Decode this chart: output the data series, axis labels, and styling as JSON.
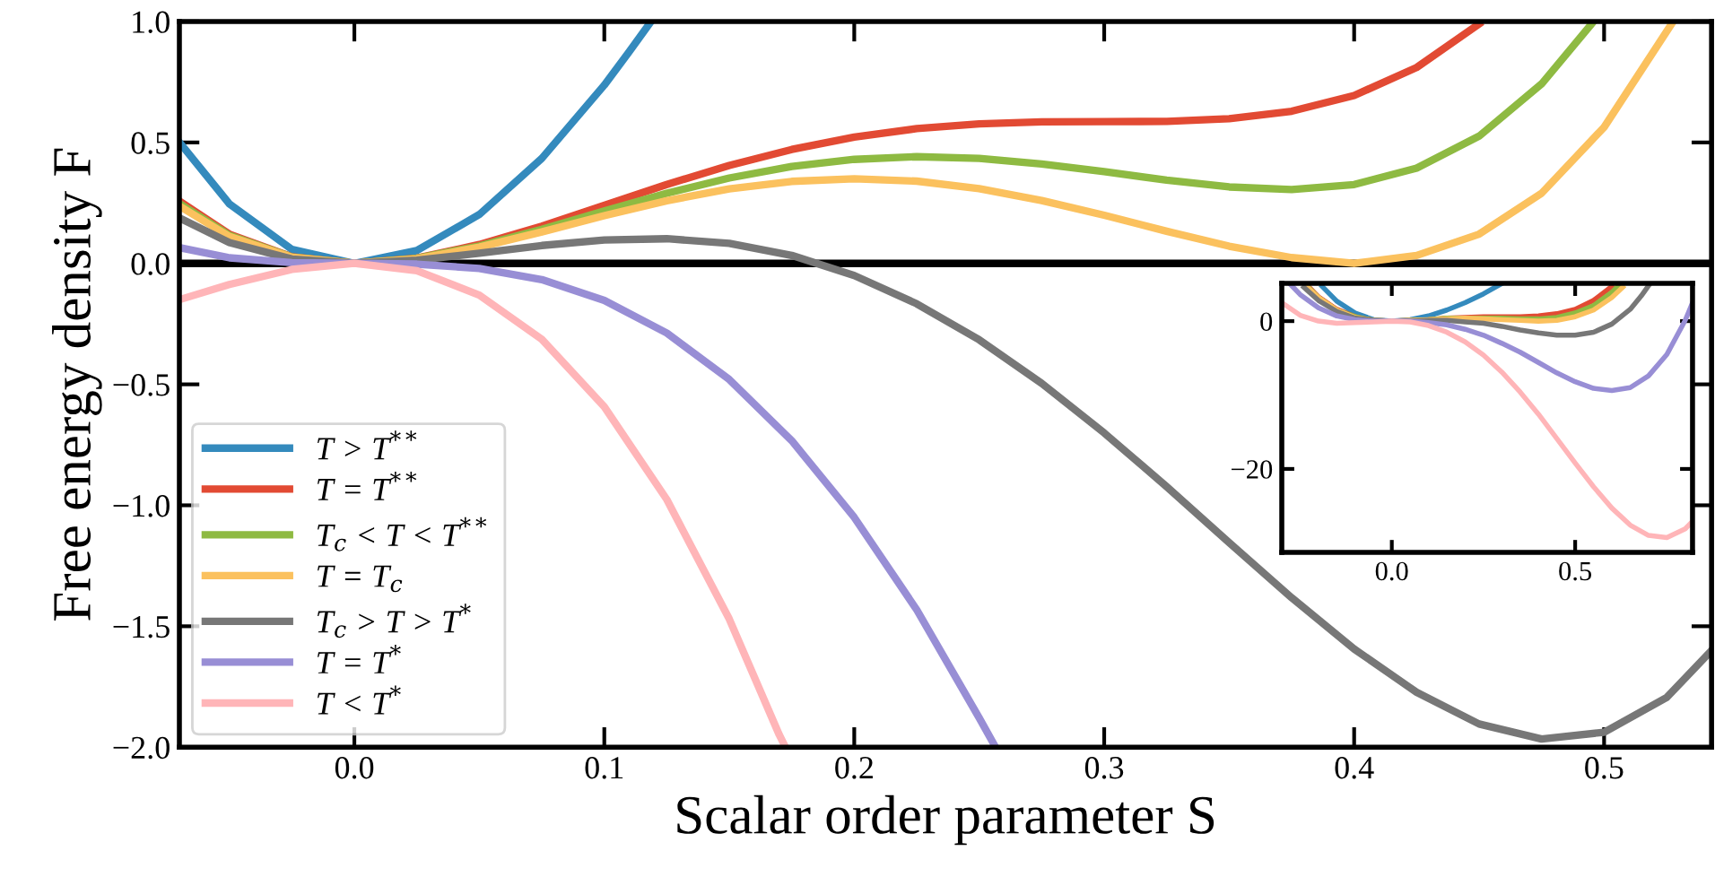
{
  "chart_data": [
    {
      "type": "line",
      "xlabel": "Scalar order parameter S",
      "ylabel": "Free energy density F",
      "xlim": [
        -0.07,
        0.543
      ],
      "ylim": [
        -2.0,
        1.0
      ],
      "xticks": [
        {
          "value": 0,
          "label": "0.0"
        },
        0.1,
        0.2,
        0.3,
        0.4,
        0.5
      ],
      "yticks": [
        {
          "value": -2,
          "label": "−2.0"
        },
        {
          "value": -1.5,
          "label": "−1.5"
        },
        {
          "value": -1,
          "label": "−1.0"
        },
        {
          "value": -0.5,
          "label": "−0.5"
        },
        {
          "value": 0,
          "label": "0.0"
        },
        0.5,
        {
          "value": 1,
          "label": "1.0"
        }
      ],
      "grid": false,
      "legend": "bottom left",
      "marker": "none",
      "line_style": "solid",
      "ref_lines": [
        {
          "axis": "y",
          "value": 0,
          "color": "#000000"
        }
      ],
      "series": [
        {
          "name": "T > T$^{**}$",
          "color": "#348abd",
          "x": [
            -0.07,
            -0.05,
            -0.025,
            0,
            0.025,
            0.05,
            0.075,
            0.1,
            0.11,
            0.118
          ],
          "values": [
            0.501,
            0.246,
            0.058,
            0,
            0.053,
            0.202,
            0.434,
            0.737,
            0.876,
            0.99
          ]
        },
        {
          "name": "T = T$^{**}$",
          "color": "#e24a33",
          "x": [
            -0.07,
            -0.05,
            -0.025,
            0,
            0.025,
            0.05,
            0.075,
            0.1,
            0.125,
            0.15,
            0.175,
            0.2,
            0.225,
            0.25,
            0.275,
            0.3,
            0.325,
            0.35,
            0.375,
            0.4,
            0.425,
            0.45
          ],
          "values": [
            0.258,
            0.121,
            0.027,
            0,
            0.022,
            0.078,
            0.154,
            0.24,
            0.326,
            0.405,
            0.471,
            0.522,
            0.557,
            0.577,
            0.585,
            0.586,
            0.587,
            0.598,
            0.629,
            0.694,
            0.81,
            0.99
          ]
        },
        {
          "name": "T$_{c}$ < T < T$^{**}$",
          "color": "#8eba42",
          "x": [
            -0.07,
            -0.05,
            -0.025,
            0,
            0.025,
            0.05,
            0.075,
            0.1,
            0.125,
            0.15,
            0.175,
            0.2,
            0.225,
            0.25,
            0.275,
            0.3,
            0.325,
            0.35,
            0.375,
            0.4,
            0.425,
            0.45,
            0.475,
            0.495
          ],
          "values": [
            0.247,
            0.116,
            0.026,
            0,
            0.021,
            0.072,
            0.141,
            0.217,
            0.29,
            0.353,
            0.401,
            0.43,
            0.441,
            0.434,
            0.411,
            0.379,
            0.344,
            0.316,
            0.305,
            0.326,
            0.394,
            0.526,
            0.742,
            0.99
          ]
        },
        {
          "name": "T = T$_{c}$",
          "color": "#fbc15e",
          "x": [
            -0.07,
            -0.05,
            -0.025,
            0,
            0.025,
            0.05,
            0.075,
            0.1,
            0.125,
            0.15,
            0.175,
            0.2,
            0.225,
            0.25,
            0.275,
            0.3,
            0.325,
            0.35,
            0.375,
            0.4,
            0.425,
            0.45,
            0.475,
            0.5,
            0.527
          ],
          "values": [
            0.237,
            0.111,
            0.025,
            0,
            0.019,
            0.067,
            0.13,
            0.197,
            0.259,
            0.308,
            0.339,
            0.35,
            0.34,
            0.309,
            0.26,
            0.199,
            0.133,
            0.071,
            0.024,
            0.0,
            0.033,
            0.121,
            0.29,
            0.563,
            0.99
          ]
        },
        {
          "name": "T$_{c}$ > T > T$^{*}$",
          "color": "#777777",
          "x": [
            -0.07,
            -0.05,
            -0.025,
            0,
            0.025,
            0.05,
            0.075,
            0.1,
            0.125,
            0.15,
            0.175,
            0.2,
            0.225,
            0.25,
            0.275,
            0.3,
            0.325,
            0.35,
            0.375,
            0.4,
            0.425,
            0.45,
            0.475,
            0.5,
            0.525,
            0.543
          ],
          "values": [
            0.188,
            0.086,
            0.018,
            0,
            0.013,
            0.042,
            0.074,
            0.097,
            0.102,
            0.083,
            0.033,
            -0.05,
            -0.167,
            -0.316,
            -0.496,
            -0.701,
            -0.923,
            -1.154,
            -1.382,
            -1.594,
            -1.773,
            -1.904,
            -1.966,
            -1.938,
            -1.795,
            -1.6
          ]
        },
        {
          "name": "T = T$^{*}$",
          "color": "#988ed5",
          "x": [
            -0.07,
            -0.05,
            -0.025,
            0,
            0.025,
            0.05,
            0.075,
            0.1,
            0.125,
            0.15,
            0.175,
            0.2,
            0.225,
            0.25,
            0.256
          ],
          "values": [
            0.065,
            0.023,
            0.003,
            0,
            -0.003,
            -0.021,
            -0.067,
            -0.153,
            -0.288,
            -0.48,
            -0.733,
            -1.05,
            -1.432,
            -1.879,
            -1.99
          ]
        },
        {
          "name": "T < T$^{*}$",
          "color": "#ffb5b8",
          "x": [
            -0.07,
            -0.05,
            -0.025,
            0,
            0.025,
            0.05,
            0.075,
            0.1,
            0.125,
            0.15,
            0.17,
            0.172
          ],
          "values": [
            -0.15,
            -0.087,
            -0.025,
            0,
            -0.03,
            -0.131,
            -0.314,
            -0.593,
            -0.976,
            -1.47,
            -1.949,
            -1.99
          ]
        }
      ]
    },
    {
      "type": "line",
      "xlim": [
        -0.3,
        0.82
      ],
      "ylim": [
        -31.3,
        5.1
      ],
      "xticks": [
        {
          "value": 0,
          "label": "0.0"
        },
        0.5
      ],
      "yticks": [
        {
          "value": -20,
          "label": "−20"
        },
        0
      ],
      "grid": false,
      "marker": "none",
      "line_style": "solid",
      "series": [
        {
          "color": "#348abd",
          "x": [
            -0.19,
            -0.15,
            -0.1,
            -0.05,
            0,
            0.05,
            0.1,
            0.15,
            0.2,
            0.25,
            0.3
          ],
          "values": [
            4.7,
            2.7,
            1.1,
            0.2,
            0,
            0.2,
            0.7,
            1.5,
            2.5,
            3.7,
            5.1
          ]
        },
        {
          "color": "#e24a33",
          "x": [
            -0.23,
            -0.2,
            -0.15,
            -0.1,
            -0.05,
            0,
            0.05,
            0.1,
            0.15,
            0.2,
            0.25,
            0.3,
            0.35,
            0.4,
            0.45,
            0.5,
            0.55,
            0.6
          ],
          "values": [
            4.8,
            3.3,
            1.6,
            0.6,
            0.1,
            0,
            0.1,
            0.2,
            0.4,
            0.5,
            0.6,
            0.6,
            0.6,
            0.7,
            1.0,
            1.6,
            2.8,
            4.7
          ]
        },
        {
          "color": "#8eba42",
          "x": [
            -0.23,
            -0.2,
            -0.15,
            -0.1,
            -0.05,
            0,
            0.05,
            0.1,
            0.15,
            0.2,
            0.25,
            0.3,
            0.35,
            0.4,
            0.45,
            0.5,
            0.55,
            0.6,
            0.62
          ],
          "values": [
            4.7,
            3.2,
            1.5,
            0.6,
            0.1,
            0,
            0.1,
            0.2,
            0.4,
            0.4,
            0.4,
            0.4,
            0.3,
            0.3,
            0.5,
            1.1,
            2.1,
            3.9,
            4.9
          ]
        },
        {
          "color": "#fbc15e",
          "x": [
            -0.23,
            -0.2,
            -0.15,
            -0.1,
            -0.05,
            0,
            0.05,
            0.1,
            0.15,
            0.2,
            0.25,
            0.3,
            0.35,
            0.4,
            0.45,
            0.5,
            0.55,
            0.6,
            0.63
          ],
          "values": [
            4.6,
            3.2,
            1.5,
            0.5,
            0.1,
            0,
            0.1,
            0.2,
            0.3,
            0.4,
            0.3,
            0.2,
            0.1,
            0.0,
            0.1,
            0.6,
            1.5,
            3.2,
            4.6
          ]
        },
        {
          "color": "#777777",
          "x": [
            -0.24,
            -0.2,
            -0.15,
            -0.1,
            -0.05,
            0,
            0.05,
            0.1,
            0.15,
            0.2,
            0.25,
            0.3,
            0.35,
            0.4,
            0.45,
            0.5,
            0.55,
            0.6,
            0.65,
            0.68,
            0.7
          ],
          "values": [
            4.6,
            2.8,
            1.3,
            0.4,
            0.1,
            0,
            0.0,
            0.1,
            0.1,
            -0.1,
            -0.3,
            -0.7,
            -1.2,
            -1.6,
            -1.9,
            -1.9,
            -1.5,
            -0.4,
            1.6,
            3.4,
            4.8
          ]
        },
        {
          "color": "#988ed5",
          "x": [
            -0.275,
            -0.25,
            -0.2,
            -0.15,
            -0.1,
            -0.05,
            0,
            0.05,
            0.1,
            0.15,
            0.2,
            0.25,
            0.3,
            0.35,
            0.4,
            0.45,
            0.5,
            0.55,
            0.6,
            0.65,
            0.7,
            0.75,
            0.8,
            0.82
          ],
          "values": [
            4.9,
            3.6,
            1.8,
            0.7,
            0.2,
            0.0,
            0,
            0.0,
            -0.2,
            -0.5,
            -1.1,
            -1.9,
            -3.0,
            -4.2,
            -5.6,
            -7.0,
            -8.2,
            -9.1,
            -9.4,
            -9.0,
            -7.4,
            -4.5,
            0.1,
            2.5
          ]
        },
        {
          "color": "#ffb5b8",
          "x": [
            -0.3,
            -0.25,
            -0.2,
            -0.15,
            -0.1,
            -0.05,
            0,
            0.05,
            0.1,
            0.15,
            0.2,
            0.25,
            0.3,
            0.35,
            0.4,
            0.45,
            0.5,
            0.55,
            0.6,
            0.65,
            0.7,
            0.75,
            0.8,
            0.82
          ],
          "values": [
            2.5,
            0.8,
            0.0,
            -0.3,
            -0.2,
            -0.1,
            0,
            -0.1,
            -0.6,
            -1.5,
            -2.8,
            -4.6,
            -6.9,
            -9.6,
            -12.6,
            -15.9,
            -19.2,
            -22.4,
            -25.3,
            -27.6,
            -29.0,
            -29.3,
            -28.1,
            -27.1
          ]
        }
      ]
    }
  ]
}
